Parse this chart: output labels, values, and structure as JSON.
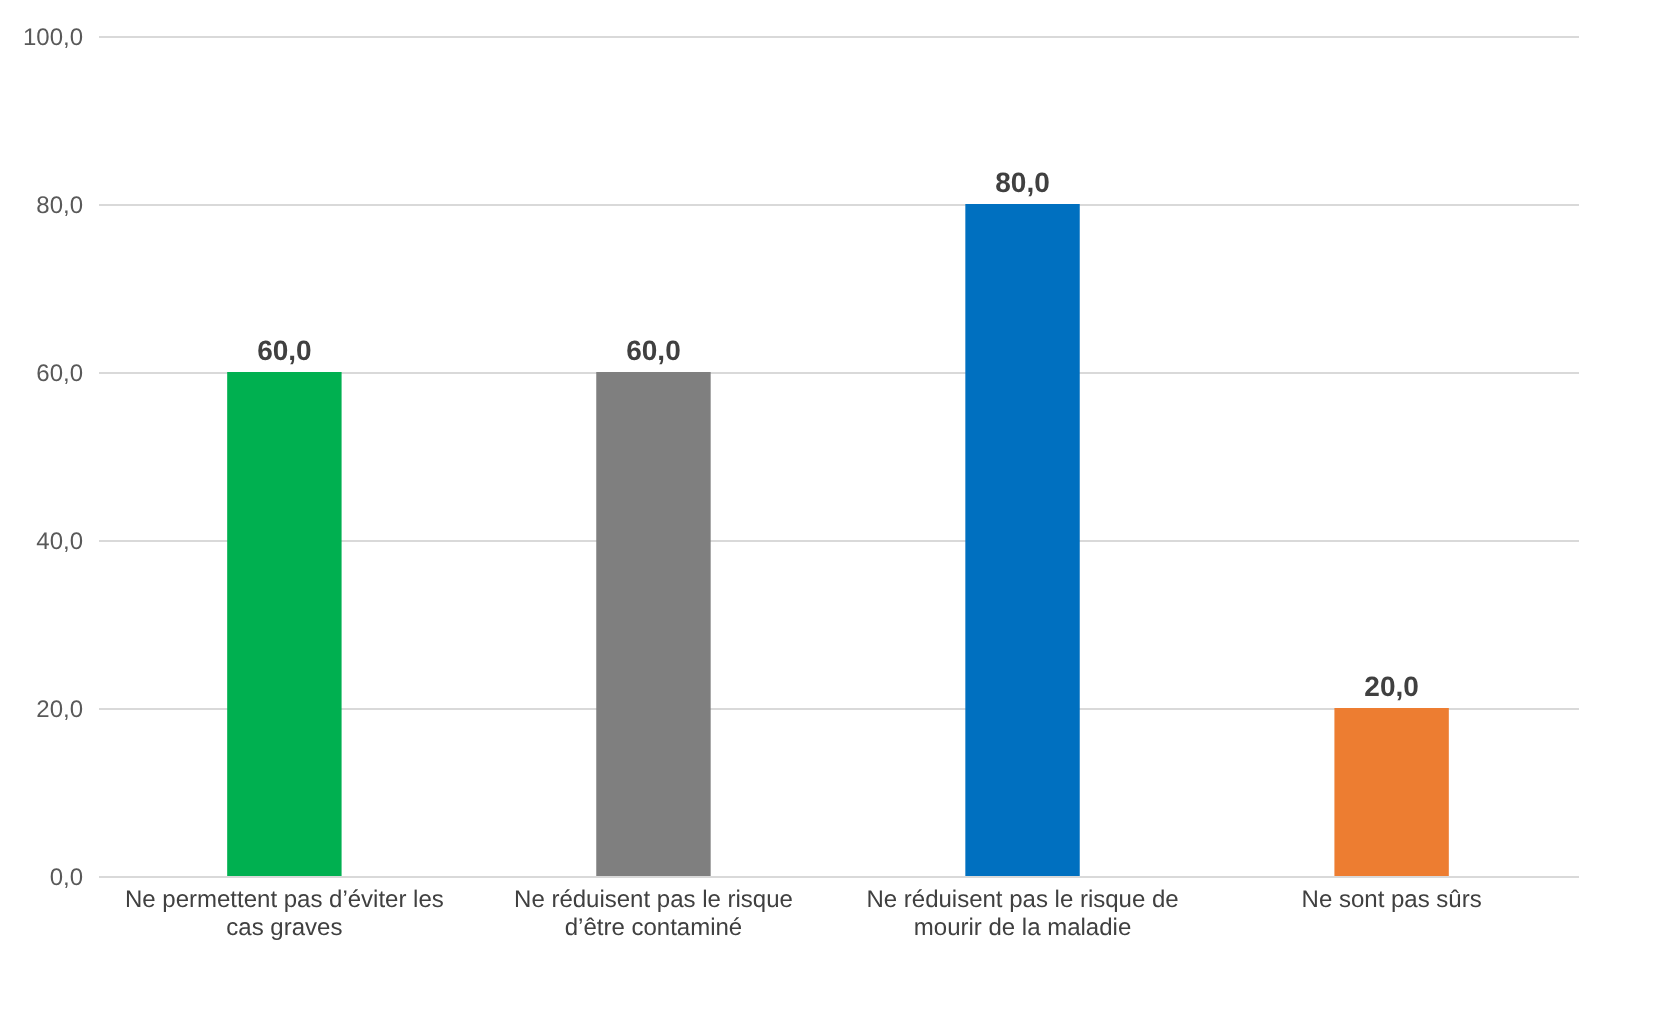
{
  "chart_data": {
    "type": "bar",
    "categories": [
      "Ne permettent pas d’éviter les cas graves",
      "Ne réduisent pas le risque d’être contaminé",
      "Ne réduisent pas le risque de mourir de la maladie",
      "Ne sont pas sûrs"
    ],
    "values": [
      60.0,
      60.0,
      80.0,
      20.0
    ],
    "colors": [
      "#00b050",
      "#7f7f7f",
      "#0070c0",
      "#ed7d31"
    ],
    "value_labels": [
      "60,0",
      "60,0",
      "80,0",
      "20,0"
    ],
    "ylim": [
      0,
      100
    ],
    "yticks": [
      {
        "value": 0,
        "label": "0,0"
      },
      {
        "value": 20,
        "label": "20,0"
      },
      {
        "value": 40,
        "label": "40,0"
      },
      {
        "value": 60,
        "label": "60,0"
      },
      {
        "value": 80,
        "label": "80,0"
      },
      {
        "value": 100,
        "label": "100,0"
      }
    ],
    "grid": "y"
  }
}
